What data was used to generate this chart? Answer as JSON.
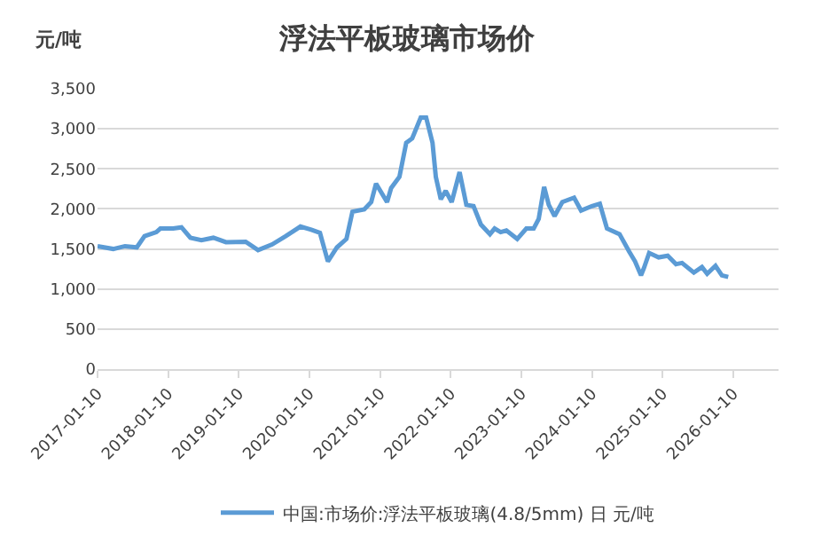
{
  "chart_data": {
    "type": "line",
    "title": "浮法平板玻璃市场价",
    "ylabel": "元/吨",
    "x": [
      "2017-01-10",
      "2017-04-01",
      "2017-06-01",
      "2017-08-01",
      "2017-09-10",
      "2017-11-10",
      "2017-12-01",
      "2018-02-05",
      "2018-03-20",
      "2018-05-05",
      "2018-07-01",
      "2018-09-01",
      "2018-11-05",
      "2019-02-15",
      "2019-04-20",
      "2019-07-01",
      "2019-09-10",
      "2019-11-25",
      "2020-01-20",
      "2020-03-05",
      "2020-04-15",
      "2020-06-01",
      "2020-07-20",
      "2020-08-20",
      "2020-10-20",
      "2020-11-25",
      "2020-12-20",
      "2021-02-15",
      "2021-03-08",
      "2021-04-20",
      "2021-05-25",
      "2021-06-25",
      "2021-08-08",
      "2021-09-05",
      "2021-10-08",
      "2021-10-25",
      "2021-11-20",
      "2021-12-15",
      "2022-01-15",
      "2022-02-25",
      "2022-04-01",
      "2022-05-08",
      "2022-06-15",
      "2022-08-01",
      "2022-08-25",
      "2022-09-25",
      "2022-10-25",
      "2022-12-20",
      "2023-02-05",
      "2023-03-15",
      "2023-04-10",
      "2023-05-08",
      "2023-06-01",
      "2023-07-01",
      "2023-08-10",
      "2023-10-10",
      "2023-11-15",
      "2024-01-10",
      "2024-02-20",
      "2024-03-28",
      "2024-06-01",
      "2024-07-20",
      "2024-08-20",
      "2024-09-20",
      "2024-10-05",
      "2024-11-01",
      "2024-12-20",
      "2025-02-05",
      "2025-03-20",
      "2025-04-20",
      "2025-06-20",
      "2025-08-01",
      "2025-08-28",
      "2025-10-10",
      "2025-11-12",
      "2025-12-15"
    ],
    "series": [
      {
        "name": "中国:市场价:浮法平板玻璃(4.8/5mm) 日 元/吨",
        "color": "#5b9bd5",
        "values": [
          1535,
          1500,
          1535,
          1520,
          1660,
          1710,
          1755,
          1755,
          1770,
          1640,
          1610,
          1640,
          1585,
          1590,
          1485,
          1555,
          1660,
          1780,
          1740,
          1700,
          1345,
          1520,
          1625,
          1965,
          1995,
          2085,
          2315,
          2085,
          2260,
          2400,
          2825,
          2880,
          3140,
          3140,
          2825,
          2400,
          2120,
          2225,
          2085,
          2460,
          2050,
          2035,
          1805,
          1685,
          1755,
          1710,
          1730,
          1625,
          1755,
          1755,
          1875,
          2275,
          2050,
          1910,
          2085,
          2140,
          1980,
          2035,
          2065,
          1755,
          1685,
          1470,
          1345,
          1170,
          1260,
          1450,
          1395,
          1415,
          1310,
          1325,
          1205,
          1275,
          1190,
          1290,
          1170,
          1150
        ]
      }
    ],
    "xlim": [
      "2017-01-10",
      "2026-09-01"
    ],
    "xticks": [
      "2017-01-10",
      "2018-01-10",
      "2019-01-10",
      "2020-01-10",
      "2021-01-10",
      "2022-01-10",
      "2023-01-10",
      "2024-01-10",
      "2025-01-10",
      "2026-01-10"
    ],
    "ylim": [
      0,
      3500
    ],
    "yticks": [
      0,
      500,
      {
        "value": 1000,
        "label": "1,000"
      },
      {
        "value": 1500,
        "label": "1,500"
      },
      {
        "value": 2000,
        "label": "2,000"
      },
      {
        "value": 2500,
        "label": "2,500"
      },
      {
        "value": 3000,
        "label": "3,000"
      },
      {
        "value": 3500,
        "label": "3,500"
      }
    ],
    "grid": "y",
    "legend": "bottom",
    "marker": "none",
    "line_style": "solid"
  }
}
